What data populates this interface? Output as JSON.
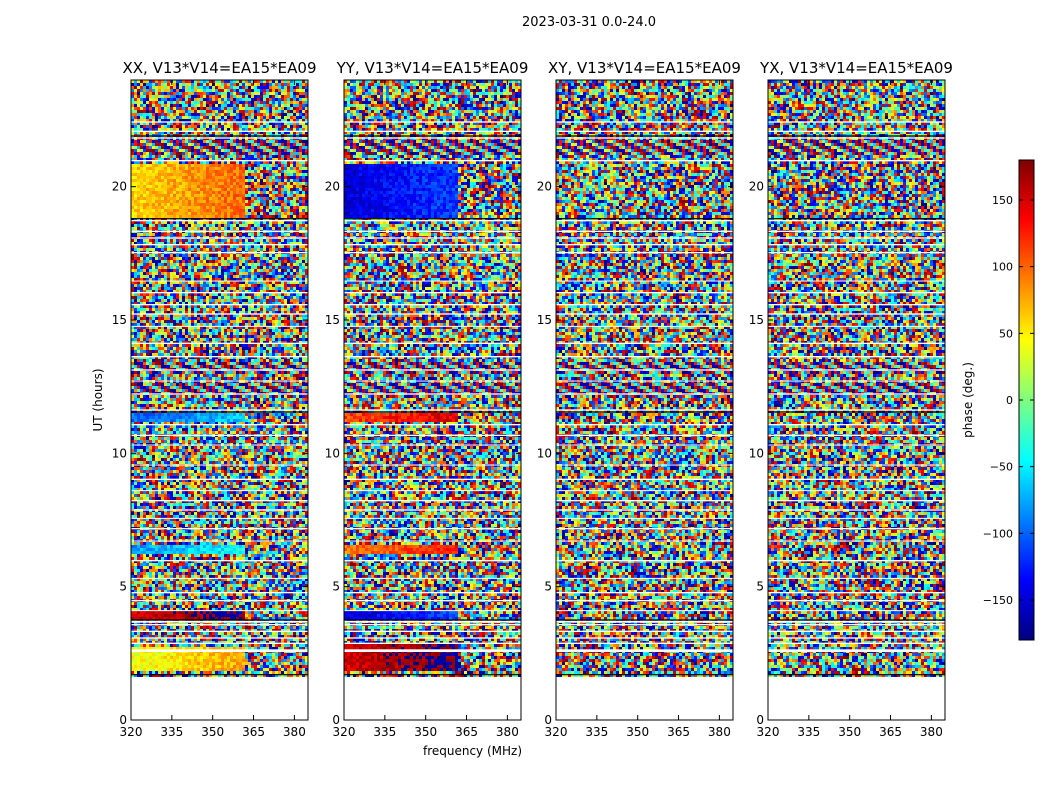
{
  "figure": {
    "suptitle": "2023-03-31 0.0-24.0"
  },
  "chart_data": [
    {
      "type": "heatmap",
      "title": "XX, V13*V14=EA15*EA09",
      "ylabel": "UT (hours)",
      "xlabel": "",
      "xlim": [
        320,
        385
      ],
      "ylim": [
        0,
        24
      ],
      "xticks": [
        320,
        335,
        350,
        365,
        380
      ],
      "yticks": [
        0,
        5,
        10,
        15,
        20
      ],
      "data_rows_ut": [
        1.7,
        24
      ],
      "smooth_band_mhz": [
        320,
        361
      ],
      "smooth_rows_ut": [
        [
          1.8,
          2.7,
          40
        ],
        [
          3.75,
          4.05,
          150
        ],
        [
          6.2,
          6.6,
          -80
        ],
        [
          11.2,
          11.5,
          -100
        ],
        [
          18.8,
          20.8,
          60
        ]
      ]
    },
    {
      "type": "heatmap",
      "title": "YY, V13*V14=EA15*EA09",
      "ylabel": "",
      "xlabel": "frequency (MHz)",
      "xlim": [
        320,
        385
      ],
      "ylim": [
        0,
        24
      ],
      "xticks": [
        320,
        335,
        350,
        365,
        380
      ],
      "yticks": [
        0,
        5,
        10,
        15,
        20
      ],
      "data_rows_ut": [
        1.7,
        24
      ],
      "smooth_band_mhz": [
        320,
        361
      ],
      "smooth_rows_ut": [
        [
          1.8,
          2.9,
          150
        ],
        [
          3.75,
          4.05,
          -150
        ],
        [
          6.2,
          6.6,
          90
        ],
        [
          11.2,
          11.5,
          110
        ],
        [
          18.8,
          20.8,
          -150
        ]
      ]
    },
    {
      "type": "heatmap",
      "title": "XY, V13*V14=EA15*EA09",
      "ylabel": "",
      "xlabel": "",
      "xlim": [
        320,
        385
      ],
      "ylim": [
        0,
        24
      ],
      "xticks": [
        320,
        335,
        350,
        365,
        380
      ],
      "yticks": [
        0,
        5,
        10,
        15,
        20
      ],
      "data_rows_ut": [
        1.7,
        24
      ],
      "smooth_band_mhz": [],
      "smooth_rows_ut": []
    },
    {
      "type": "heatmap",
      "title": "YX, V13*V14=EA15*EA09",
      "ylabel": "",
      "xlabel": "",
      "xlim": [
        320,
        385
      ],
      "ylim": [
        0,
        24
      ],
      "xticks": [
        320,
        335,
        350,
        365,
        380
      ],
      "yticks": [
        0,
        5,
        10,
        15,
        20
      ],
      "data_rows_ut": [
        1.7,
        24
      ],
      "smooth_band_mhz": [],
      "smooth_rows_ut": []
    }
  ],
  "colorbar": {
    "label": "phase (deg.)",
    "range": [
      -180,
      180
    ],
    "ticks": [
      150,
      100,
      50,
      0,
      -50,
      -100,
      -150
    ],
    "tick_labels": [
      "150",
      "100",
      "50",
      "0",
      "−50",
      "−100",
      "−150"
    ],
    "colormap": "jet",
    "colormap_stops": [
      "#00007f",
      "#0000ff",
      "#007fff",
      "#00ffff",
      "#7fff7f",
      "#ffff00",
      "#ff7f00",
      "#ff0000",
      "#7f0000"
    ]
  },
  "flagged_rows_ut": [
    [
      2.55,
      2.65
    ],
    [
      2.85,
      2.9
    ],
    [
      3.05,
      3.1
    ],
    [
      3.3,
      3.35
    ],
    [
      3.55,
      3.6
    ],
    [
      3.65,
      3.72
    ],
    [
      4.1,
      4.12
    ],
    [
      4.45,
      4.5
    ],
    [
      4.75,
      4.8
    ],
    [
      5.3,
      5.33
    ],
    [
      5.95,
      6.0
    ],
    [
      6.7,
      6.73
    ],
    [
      7.15,
      7.2
    ],
    [
      7.55,
      7.58
    ],
    [
      7.85,
      7.9
    ],
    [
      8.2,
      8.25
    ],
    [
      8.6,
      8.62
    ],
    [
      9.0,
      9.05
    ],
    [
      9.55,
      9.58
    ],
    [
      10.3,
      10.33
    ],
    [
      10.65,
      10.7
    ],
    [
      11.05,
      11.1
    ],
    [
      11.6,
      11.65
    ],
    [
      12.2,
      12.25
    ],
    [
      12.7,
      12.73
    ],
    [
      13.1,
      13.15
    ],
    [
      13.6,
      13.65
    ],
    [
      14.1,
      14.15
    ],
    [
      14.75,
      14.78
    ],
    [
      15.2,
      15.25
    ],
    [
      15.55,
      15.6
    ],
    [
      16.0,
      16.05
    ],
    [
      16.45,
      16.48
    ],
    [
      17.5,
      17.55
    ],
    [
      17.8,
      17.85
    ],
    [
      18.05,
      18.1
    ],
    [
      18.3,
      18.35
    ],
    [
      18.7,
      18.75
    ],
    [
      20.95,
      21.0
    ],
    [
      21.8,
      21.85
    ],
    [
      22.05,
      22.1
    ],
    [
      22.4,
      22.45
    ]
  ],
  "ringing_rows_ut": [
    [
      12.2,
      12.6
    ],
    [
      21.2,
      21.8
    ],
    [
      13.0,
      13.4
    ]
  ]
}
